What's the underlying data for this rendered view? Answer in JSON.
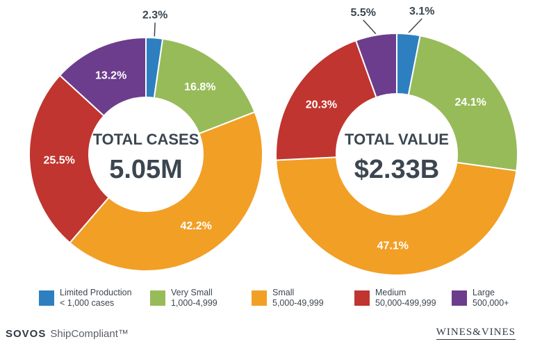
{
  "chart_data": [
    {
      "type": "pie",
      "center_title": "TOTAL CASES",
      "center_value": "5.05M",
      "categories": [
        "Limited Production",
        "Very Small",
        "Small",
        "Medium",
        "Large"
      ],
      "values": [
        2.3,
        16.8,
        42.2,
        25.5,
        13.2
      ],
      "labels": [
        "2.3%",
        "16.8%",
        "42.2%",
        "25.5%",
        "13.2%"
      ]
    },
    {
      "type": "pie",
      "center_title": "TOTAL VALUE",
      "center_value": "$2.33B",
      "categories": [
        "Limited Production",
        "Very Small",
        "Small",
        "Medium",
        "Large"
      ],
      "values": [
        3.1,
        24.1,
        47.1,
        20.3,
        5.5
      ],
      "labels": [
        "3.1%",
        "24.1%",
        "47.1%",
        "20.3%",
        "5.5%"
      ]
    }
  ],
  "colors": [
    "#2e7fc0",
    "#97bb59",
    "#f29f26",
    "#c0352f",
    "#6c3d8c"
  ],
  "legend": [
    {
      "name": "Limited Production",
      "range": "< 1,000 cases"
    },
    {
      "name": "Very Small",
      "range": "1,000-4,999"
    },
    {
      "name": "Small",
      "range": "5,000-49,999"
    },
    {
      "name": "Medium",
      "range": "50,000-499,999"
    },
    {
      "name": "Large",
      "range": "500,000+"
    }
  ],
  "footer": {
    "brand": "SOVOS",
    "product": "ShipCompliant™",
    "partner": "WINES&VINES"
  }
}
